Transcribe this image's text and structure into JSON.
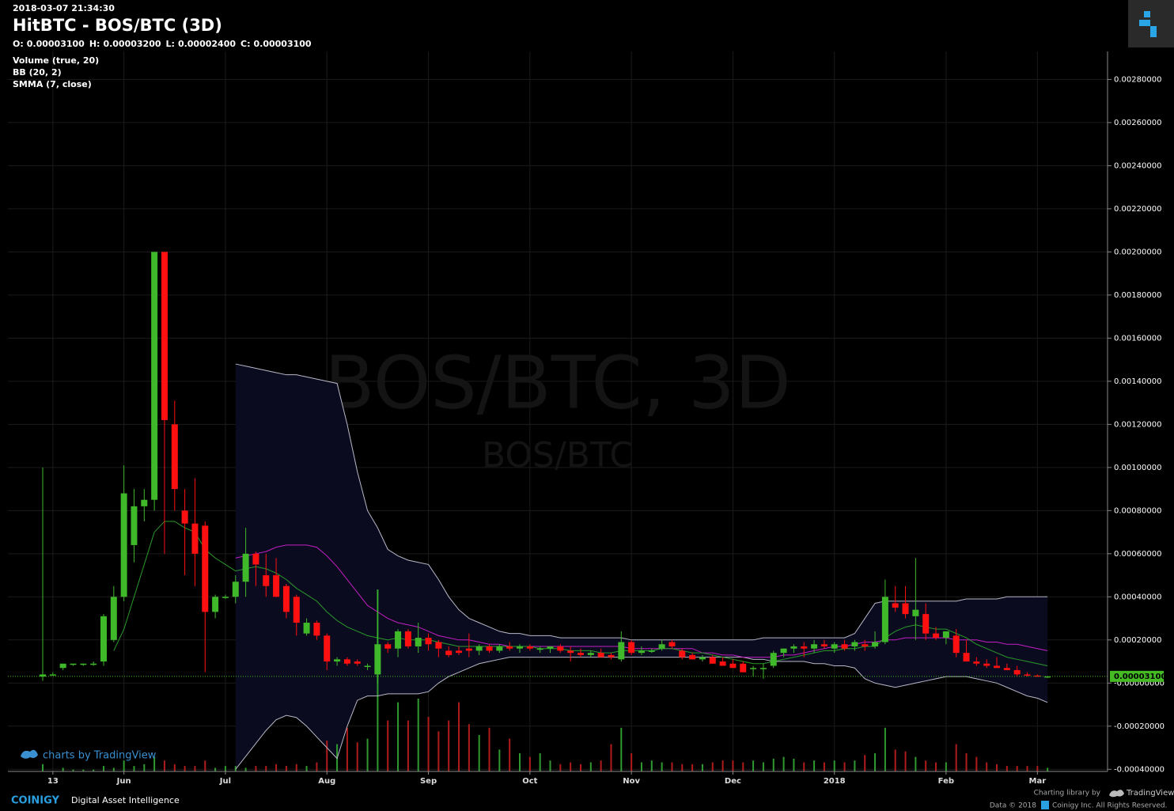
{
  "chart_data": {
    "type": "candlestick",
    "timestamp": "2018-03-07 21:34:30",
    "title": "HitBTC - BOS/BTC (3D)",
    "ohlc_header": [
      {
        "name": "O:",
        "value": 3.1e-05,
        "label": "0.00003100"
      },
      {
        "name": "H:",
        "value": 3.2e-05,
        "label": "0.00003200"
      },
      {
        "name": "L:",
        "value": 2.4e-05,
        "label": "0.00002400"
      },
      {
        "name": "C:",
        "value": 3.1e-05,
        "label": "0.00003100"
      }
    ],
    "indicators": [
      "Volume (true, 20)",
      "BB (20, 2)",
      "SMMA (7, close)"
    ],
    "watermark": [
      "BOS/BTC, 3D",
      "BOS/BTC"
    ],
    "categories": [
      null,
      "13",
      null,
      null,
      null,
      null,
      null,
      null,
      "Jun",
      null,
      null,
      null,
      null,
      null,
      null,
      null,
      null,
      null,
      "Jul",
      null,
      null,
      null,
      null,
      null,
      null,
      null,
      null,
      null,
      "Aug",
      null,
      null,
      null,
      null,
      null,
      null,
      null,
      null,
      null,
      "Sep",
      null,
      null,
      null,
      null,
      null,
      null,
      null,
      null,
      null,
      "Oct",
      null,
      null,
      null,
      null,
      null,
      null,
      null,
      null,
      null,
      "Nov",
      null,
      null,
      null,
      null,
      null,
      null,
      null,
      null,
      null,
      "Dec",
      null,
      null,
      null,
      null,
      null,
      null,
      null,
      null,
      null,
      "2018",
      null,
      null,
      null,
      null,
      null,
      null,
      null,
      null,
      null,
      null,
      "Feb",
      null,
      null,
      null,
      null,
      null,
      null,
      null,
      null,
      "Mar",
      null
    ],
    "open": [
      3e-05,
      4e-05,
      7e-05,
      9e-05,
      9e-05,
      9e-05,
      0.0001,
      0.0002,
      0.0004,
      0.00064,
      0.00082,
      0.00085,
      0.002,
      0.0012,
      0.0008,
      0.00074,
      0.00073,
      0.00033,
      0.0004,
      0.0004,
      0.00047,
      0.0006,
      0.0005,
      0.0005,
      0.00045,
      0.0004,
      0.00023,
      0.00028,
      0.00022,
      0.0001,
      0.00011,
      0.0001,
      8e-05,
      4e-05,
      0.00018,
      0.00016,
      0.00024,
      0.00017,
      0.00021,
      0.00019,
      0.00015,
      0.00015,
      0.00016,
      0.00015,
      0.00017,
      0.00015,
      0.00017,
      0.00016,
      0.00017,
      0.00016,
      0.00016,
      0.00017,
      0.00015,
      0.00014,
      0.00013,
      0.00014,
      0.00013,
      0.00011,
      0.00019,
      0.00014,
      0.00015,
      0.00016,
      0.00019,
      0.00015,
      0.00013,
      0.00011,
      0.00012,
      0.0001,
      9e-05,
      9e-05,
      7e-05,
      7e-05,
      8e-05,
      0.00014,
      0.00016,
      0.00017,
      0.00016,
      0.00018,
      0.00016,
      0.00018,
      0.00017,
      0.00018,
      0.00017,
      0.00019,
      0.00037,
      0.00037,
      0.00031,
      0.00032,
      0.00023,
      0.00021,
      0.00022,
      0.00014,
      0.0001,
      9e-05,
      8e-05,
      7e-05,
      6e-05,
      4e-05,
      3.5e-05,
      3.1e-05
    ],
    "high": [
      0.001,
      5e-05,
      9e-05,
      9e-05,
      9e-05,
      0.0001,
      0.00032,
      0.00045,
      0.00101,
      0.0009,
      0.0009,
      0.002,
      0.002,
      0.00131,
      0.0009,
      0.00095,
      0.00075,
      0.00041,
      0.00041,
      0.0005,
      0.00072,
      0.00061,
      0.0006,
      0.00058,
      0.00046,
      0.00041,
      0.0003,
      0.00029,
      0.00023,
      0.00012,
      0.00012,
      0.00011,
      9e-05,
      0.00043,
      0.00019,
      0.00025,
      0.00025,
      0.00028,
      0.00023,
      0.0002,
      0.00017,
      0.00017,
      0.00023,
      0.00018,
      0.00018,
      0.00018,
      0.00019,
      0.00018,
      0.00018,
      0.00017,
      0.00017,
      0.00018,
      0.00017,
      0.00016,
      0.00015,
      0.00016,
      0.00014,
      0.00024,
      0.0002,
      0.00017,
      0.00016,
      0.0002,
      0.0002,
      0.00016,
      0.00014,
      0.00013,
      0.00013,
      0.00012,
      0.00011,
      0.0001,
      8e-05,
      9e-05,
      0.00015,
      0.00016,
      0.00018,
      0.00019,
      0.0002,
      0.0002,
      0.00019,
      0.0002,
      0.0002,
      0.0002,
      0.00024,
      0.00048,
      0.00045,
      0.00045,
      0.00058,
      0.00037,
      0.00026,
      0.00024,
      0.00025,
      0.0002,
      0.00012,
      0.00011,
      0.00012,
      9e-05,
      8e-05,
      5e-05,
      4e-05,
      3.2e-05
    ],
    "low": [
      1e-05,
      4e-05,
      6e-05,
      8e-05,
      8e-05,
      8e-05,
      8e-05,
      0.00019,
      0.00038,
      0.00056,
      0.00075,
      0.0008,
      0.0006,
      0.0008,
      0.0005,
      0.00045,
      5e-05,
      0.0003,
      0.00039,
      0.00037,
      0.0004,
      0.00045,
      0.0004,
      0.0004,
      0.0003,
      0.00022,
      0.00022,
      0.0002,
      6e-05,
      8e-05,
      8e-05,
      8e-05,
      6e-05,
      0,
      0.00014,
      0.00012,
      0.00016,
      0.00014,
      0.00015,
      0.00012,
      0.00012,
      0.00013,
      0.00012,
      0.00013,
      0.00014,
      0.00014,
      0.00015,
      0.00014,
      0.00015,
      0.00014,
      0.00014,
      0.00014,
      0.0001,
      0.00012,
      0.00012,
      0.00012,
      0.00011,
      0.0001,
      0.00013,
      0.00013,
      0.00014,
      0.00015,
      0.00016,
      0.00011,
      0.00011,
      0.0001,
      9e-05,
      8e-05,
      7e-05,
      5e-05,
      3e-05,
      2e-05,
      7e-05,
      0.00012,
      0.00014,
      0.00012,
      0.00014,
      0.00016,
      0.00014,
      0.00015,
      0.00015,
      0.00015,
      0.00016,
      0.00018,
      0.00033,
      0.0003,
      0.0002,
      0.0002,
      0.0002,
      0.00018,
      0.00012,
      0.0001,
      8e-05,
      7e-05,
      7e-05,
      6e-05,
      3e-05,
      3e-05,
      3e-05,
      2.4e-05
    ],
    "close": [
      4e-05,
      4e-05,
      9e-05,
      9e-05,
      9e-05,
      9e-05,
      0.00031,
      0.0004,
      0.00088,
      0.00082,
      0.00085,
      0.002,
      0.00122,
      0.0009,
      0.00074,
      0.0006,
      0.00033,
      0.0004,
      0.0004,
      0.00047,
      0.0006,
      0.00055,
      0.00045,
      0.0004,
      0.00033,
      0.00028,
      0.00028,
      0.00022,
      0.0001,
      0.00011,
      9e-05,
      9e-05,
      8e-05,
      0.00018,
      0.00016,
      0.00024,
      0.00017,
      0.00021,
      0.00018,
      0.00016,
      0.00013,
      0.00014,
      0.00015,
      0.00017,
      0.00015,
      0.00017,
      0.00016,
      0.00017,
      0.00016,
      0.00016,
      0.00017,
      0.00015,
      0.00014,
      0.00013,
      0.00014,
      0.00012,
      0.00012,
      0.00019,
      0.00014,
      0.00015,
      0.00015,
      0.00018,
      0.00017,
      0.00012,
      0.00011,
      0.00012,
      9e-05,
      8e-05,
      7e-05,
      5e-05,
      7e-05,
      7e-05,
      0.00014,
      0.00016,
      0.00017,
      0.00016,
      0.00018,
      0.00017,
      0.00018,
      0.00016,
      0.00019,
      0.00017,
      0.00019,
      0.0004,
      0.00035,
      0.00032,
      0.00034,
      0.00023,
      0.00021,
      0.00024,
      0.00014,
      0.0001,
      9e-05,
      8e-05,
      7e-05,
      6e-05,
      4e-05,
      3.5e-05,
      3.2e-05,
      3.1e-05
    ],
    "up_color": "#3fb82a",
    "down_color": "#ff1010",
    "volume": {
      "up_color": "#2f9a2f",
      "down_color": "#b01c1c",
      "values": [
        4,
        0,
        2,
        1,
        1,
        1,
        3,
        2,
        6,
        3,
        4,
        8,
        6,
        4,
        3,
        3,
        6,
        2,
        3,
        3,
        2,
        3,
        3,
        4,
        3,
        4,
        3,
        5,
        17,
        15,
        24,
        16,
        18,
        100,
        28,
        38,
        28,
        40,
        30,
        22,
        28,
        38,
        26,
        20,
        24,
        12,
        18,
        10,
        8,
        10,
        6,
        4,
        5,
        4,
        5,
        6,
        15,
        24,
        10,
        5,
        6,
        5,
        5,
        4,
        4,
        4,
        5,
        6,
        6,
        5,
        6,
        5,
        7,
        8,
        7,
        5,
        6,
        5,
        6,
        5,
        6,
        9,
        10,
        24,
        12,
        11,
        8,
        6,
        5,
        5,
        15,
        10,
        8,
        5,
        4,
        3,
        3,
        3,
        3,
        2
      ]
    },
    "band_fill": "#0b0b20",
    "lines": [
      {
        "color": "#b8b8c8",
        "values": [
          null,
          null,
          null,
          null,
          null,
          null,
          null,
          null,
          null,
          null,
          null,
          null,
          null,
          null,
          null,
          null,
          null,
          null,
          null,
          0.00148,
          0.00147,
          0.00146,
          0.00145,
          0.00144,
          0.00143,
          0.00143,
          0.00142,
          0.00141,
          0.0014,
          0.00139,
          0.0012,
          0.00098,
          0.0008,
          0.00072,
          0.00062,
          0.00059,
          0.00057,
          0.00056,
          0.00055,
          0.00048,
          0.0004,
          0.00034,
          0.0003,
          0.00028,
          0.00026,
          0.00024,
          0.00023,
          0.00023,
          0.00022,
          0.00022,
          0.00022,
          0.00021,
          0.00021,
          0.00021,
          0.00021,
          0.00021,
          0.00021,
          0.00021,
          0.0002,
          0.0002,
          0.0002,
          0.0002,
          0.0002,
          0.0002,
          0.0002,
          0.0002,
          0.0002,
          0.0002,
          0.0002,
          0.0002,
          0.0002,
          0.00021,
          0.00021,
          0.00021,
          0.00021,
          0.00021,
          0.00021,
          0.00021,
          0.00021,
          0.00021,
          0.00023,
          0.0003,
          0.00037,
          0.00038,
          0.00038,
          0.00038,
          0.00038,
          0.00038,
          0.00038,
          0.00038,
          0.00038,
          0.00039,
          0.00039,
          0.00039,
          0.00039,
          0.0004,
          0.0004,
          0.0004,
          0.0004,
          0.0004
        ]
      },
      {
        "color": "#b8b8c8",
        "values": [
          null,
          null,
          null,
          null,
          null,
          null,
          null,
          null,
          null,
          null,
          null,
          null,
          null,
          null,
          null,
          null,
          null,
          null,
          null,
          -0.0004,
          -0.00034,
          -0.00028,
          -0.00022,
          -0.00017,
          -0.00015,
          -0.00016,
          -0.0002,
          -0.00025,
          -0.0003,
          -0.00035,
          -0.0002,
          -8e-05,
          -6e-05,
          -6e-05,
          -5e-05,
          -5e-05,
          -5e-05,
          -5e-05,
          -4e-05,
          0,
          3e-05,
          5e-05,
          7e-05,
          9e-05,
          0.0001,
          0.00011,
          0.00012,
          0.00012,
          0.00012,
          0.00012,
          0.00012,
          0.00012,
          0.00012,
          0.00012,
          0.00012,
          0.00012,
          0.00012,
          0.00012,
          0.00012,
          0.00012,
          0.00012,
          0.00012,
          0.00012,
          0.00012,
          0.00012,
          0.00012,
          0.00012,
          0.00012,
          0.00012,
          0.00012,
          0.00011,
          0.00011,
          0.0001,
          0.0001,
          0.0001,
          0.0001,
          9e-05,
          9e-05,
          8e-05,
          8e-05,
          7e-05,
          2e-05,
          0,
          -1e-05,
          -2e-05,
          -1e-05,
          0,
          1e-05,
          2e-05,
          3e-05,
          3e-05,
          3e-05,
          2e-05,
          1e-05,
          0,
          -2e-05,
          -4e-05,
          -6e-05,
          -7e-05,
          -9e-05
        ]
      },
      {
        "color": "#c21fc2",
        "values": [
          null,
          null,
          null,
          null,
          null,
          null,
          null,
          null,
          null,
          null,
          null,
          null,
          null,
          null,
          null,
          null,
          null,
          null,
          null,
          0.00058,
          0.00059,
          0.0006,
          0.00061,
          0.00063,
          0.00064,
          0.00064,
          0.00064,
          0.00063,
          0.00059,
          0.00054,
          0.00048,
          0.00042,
          0.00036,
          0.00033,
          0.0003,
          0.00028,
          0.00027,
          0.00026,
          0.00024,
          0.00022,
          0.00021,
          0.0002,
          0.0002,
          0.00019,
          0.00018,
          0.00018,
          0.00017,
          0.00017,
          0.00017,
          0.00017,
          0.00017,
          0.00017,
          0.00017,
          0.00017,
          0.00017,
          0.00017,
          0.00017,
          0.00017,
          0.00016,
          0.00016,
          0.00016,
          0.00016,
          0.00016,
          0.00016,
          0.00016,
          0.00014,
          0.00014,
          0.00013,
          0.00013,
          0.00012,
          0.00012,
          0.00012,
          0.00012,
          0.00013,
          0.00013,
          0.00014,
          0.00015,
          0.00016,
          0.00017,
          0.00017,
          0.00018,
          0.00019,
          0.00019,
          0.0002,
          0.0002,
          0.00021,
          0.00021,
          0.00021,
          0.00021,
          0.00021,
          0.0002,
          0.0002,
          0.0002,
          0.00019,
          0.00019,
          0.00018,
          0.00018,
          0.00017,
          0.00016,
          0.00015
        ]
      },
      {
        "color": "#2a9a2a",
        "values": [
          null,
          null,
          null,
          null,
          null,
          null,
          null,
          0.00015,
          0.00025,
          0.0004,
          0.00055,
          0.0007,
          0.00075,
          0.00075,
          0.00072,
          0.0007,
          0.00062,
          0.00058,
          0.00055,
          0.00052,
          0.00053,
          0.00054,
          0.00053,
          0.00051,
          0.00048,
          0.00044,
          0.00041,
          0.00038,
          0.00033,
          0.00029,
          0.00026,
          0.00024,
          0.00022,
          0.00021,
          0.0002,
          0.00021,
          0.0002,
          0.0002,
          0.0002,
          0.00019,
          0.00018,
          0.00017,
          0.00017,
          0.00017,
          0.00017,
          0.00017,
          0.00017,
          0.00017,
          0.00017,
          0.00016,
          0.00016,
          0.00016,
          0.00015,
          0.00015,
          0.00015,
          0.00014,
          0.00014,
          0.00015,
          0.00015,
          0.00015,
          0.00015,
          0.00016,
          0.00016,
          0.00015,
          0.00014,
          0.00014,
          0.00013,
          0.00012,
          0.00011,
          0.0001,
          9e-05,
          9e-05,
          0.0001,
          0.00011,
          0.00012,
          0.00013,
          0.00014,
          0.00015,
          0.00015,
          0.00016,
          0.00016,
          0.00017,
          0.00017,
          0.00021,
          0.00024,
          0.00026,
          0.00027,
          0.00026,
          0.00025,
          0.00025,
          0.00023,
          0.00021,
          0.00018,
          0.00016,
          0.00014,
          0.00012,
          0.00011,
          0.0001,
          9e-05,
          8e-05
        ]
      }
    ],
    "last_price": {
      "value": 3.1e-05,
      "label": "0.00003100",
      "color": "#44bb22"
    },
    "ylim": [
      -0.00041,
      0.00293
    ],
    "yticks": [
      {
        "value": -0.0004,
        "label": "-0.00040000"
      },
      {
        "value": -0.0002,
        "label": "-0.00020000"
      },
      {
        "value": 0,
        "label": "-0.00000000"
      },
      {
        "value": 0.0002,
        "label": "0.00020000"
      },
      {
        "value": 0.0004,
        "label": "0.00040000"
      },
      {
        "value": 0.0006,
        "label": "0.00060000"
      },
      {
        "value": 0.0008,
        "label": "0.00080000"
      },
      {
        "value": 0.001,
        "label": "0.00100000"
      },
      {
        "value": 0.0012,
        "label": "0.00120000"
      },
      {
        "value": 0.0014,
        "label": "0.00140000"
      },
      {
        "value": 0.0016,
        "label": "0.00160000"
      },
      {
        "value": 0.0018,
        "label": "0.00180000"
      },
      {
        "value": 0.002,
        "label": "0.00200000"
      },
      {
        "value": 0.0022,
        "label": "0.00220000"
      },
      {
        "value": 0.0024,
        "label": "0.00240000"
      },
      {
        "value": 0.0026,
        "label": "0.00260000"
      },
      {
        "value": 0.0028,
        "label": "0.00280000"
      }
    ],
    "grid": true,
    "footer": {
      "charts_by": "charts by TradingView",
      "brand": "COINIGY",
      "tagline": "Digital Asset Intelligence",
      "library": "Charting library by",
      "library_brand": "TradingView",
      "data": "Data © 2018",
      "rights": "Coinigy Inc. All Rights Reserved."
    }
  }
}
